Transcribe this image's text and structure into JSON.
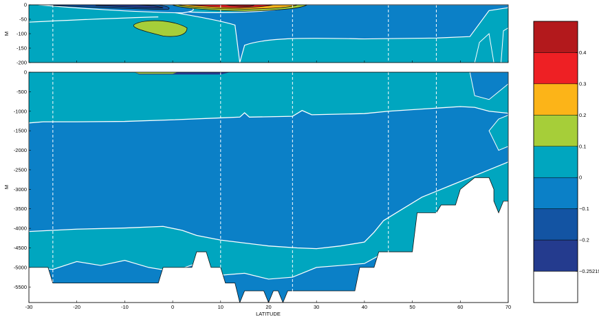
{
  "chart_data": {
    "type": "heatmap",
    "description_type": "filled-contour ocean section",
    "xlabel": "LATITUDE",
    "ylabel_top": "M",
    "ylabel_bottom": "M",
    "xlim": [
      -30,
      70
    ],
    "x_ticks": [
      -30,
      -20,
      -10,
      0,
      10,
      20,
      30,
      40,
      50,
      60,
      70
    ],
    "dashed_lines_at_latitude": [
      -25,
      10,
      25,
      45,
      55
    ],
    "top_panel": {
      "ylim": [
        -200,
        0
      ],
      "y_ticks": [
        0,
        -50,
        -100,
        -150,
        -200
      ]
    },
    "bottom_panel": {
      "ylim": [
        -5900,
        0
      ],
      "y_ticks": [
        0,
        -500,
        -1000,
        -1500,
        -2000,
        -2500,
        -3000,
        -3500,
        -4000,
        -4500,
        -5000,
        -5500
      ]
    },
    "colorbar": {
      "levels": [
        -0.25219,
        -0.2,
        -0.1,
        0,
        0.1,
        0.2,
        0.3,
        0.4
      ],
      "tick_labels": [
        "0.4",
        "0.3",
        "0.2",
        "0.1",
        "0",
        "−0.1",
        "−0.2",
        "−0.25219"
      ],
      "colors_top_to_bottom": [
        "#b3191c",
        "#ee2024",
        "#fcb418",
        "#a6ce39",
        "#00a6bf",
        "#0b80c7",
        "#1354a3",
        "#243b8e",
        "#ffffff"
      ]
    },
    "palette": {
      "bg_teal": "#00a6bf",
      "mid_blue": "#0b80c7",
      "dark_blue": "#1354a3",
      "darkest_blue": "#243b8e",
      "green": "#a6ce39",
      "orange": "#fcb418",
      "red": "#ee2024",
      "dark_red": "#b3191c",
      "land": "#ffffff",
      "contour": "#ffffff"
    }
  }
}
